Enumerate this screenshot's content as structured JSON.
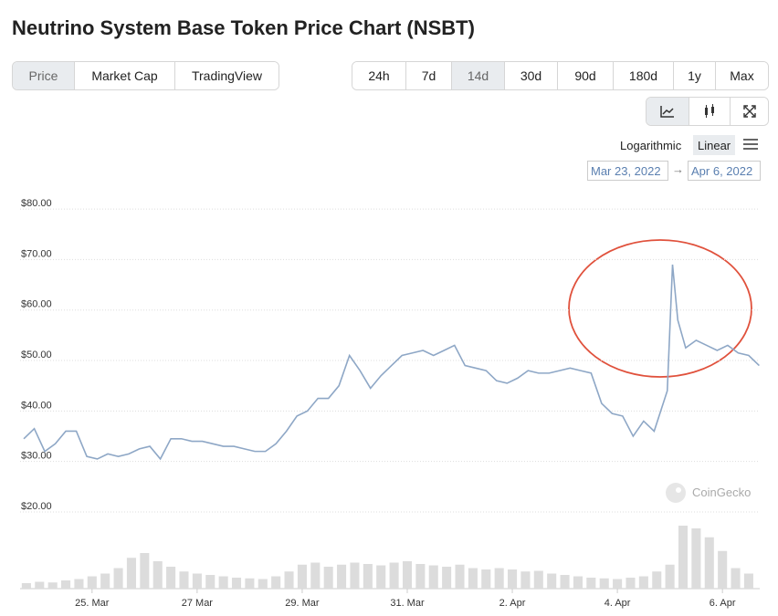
{
  "header": {
    "title": "Neutrino System Base Token Price Chart (NSBT)"
  },
  "tabs": [
    "Price",
    "Market Cap",
    "TradingView"
  ],
  "ranges": [
    "24h",
    "7d",
    "14d",
    "30d",
    "90d",
    "180d",
    "1y",
    "Max"
  ],
  "scales": [
    "Logarithmic",
    "Linear"
  ],
  "date_range": {
    "from": "Mar 23, 2022",
    "to": "Apr 6, 2022"
  },
  "watermark": "CoinGecko",
  "chart_data": {
    "type": "line",
    "color": "#8ea7c6",
    "grid": true,
    "x": [
      0.7,
      0.9,
      1.1,
      1.3,
      1.5,
      1.7,
      1.9,
      2.1,
      2.3,
      2.5,
      2.7,
      2.9,
      3.1,
      3.3,
      3.5,
      3.7,
      3.9,
      4.1,
      4.3,
      4.5,
      4.7,
      4.9,
      5.1,
      5.3,
      5.5,
      5.7,
      5.9,
      6.1,
      6.3,
      6.5,
      6.7,
      6.9,
      7.1,
      7.3,
      7.5,
      7.7,
      7.9,
      8.1,
      8.3,
      8.5,
      8.7,
      8.9,
      9.1,
      9.3,
      9.5,
      9.7,
      9.9,
      10.1,
      10.3,
      10.5,
      10.7,
      10.9,
      11.1,
      11.3,
      11.5,
      11.7,
      11.9,
      12.1,
      12.3,
      12.5,
      12.7,
      12.95,
      13.05,
      13.15,
      13.3,
      13.5,
      13.7,
      13.9,
      14.1,
      14.3,
      14.5,
      14.7
    ],
    "values": [
      34.5,
      36.5,
      32,
      33.5,
      36,
      36,
      31,
      30.5,
      31.5,
      31,
      31.5,
      32.5,
      33,
      30.5,
      34.5,
      34.5,
      34,
      34,
      33.5,
      33,
      33,
      32.5,
      32,
      32,
      33.5,
      36,
      39,
      40,
      42.5,
      42.5,
      45,
      51,
      48,
      44.5,
      47,
      49,
      51,
      51.5,
      52,
      51,
      52,
      53,
      49,
      48.5,
      48,
      46,
      45.5,
      46.5,
      48,
      47.5,
      47.5,
      48,
      48.5,
      48,
      47.5,
      41.5,
      39.5,
      39,
      35,
      38,
      36,
      44,
      69,
      58,
      52.5,
      54,
      53,
      52,
      53,
      51.5,
      51,
      49
    ],
    "xlim": [
      0.63,
      14.71
    ],
    "xticks": [
      {
        "value": 2,
        "label": "25. Mar"
      },
      {
        "value": 4,
        "label": "27 Mar"
      },
      {
        "value": 6,
        "label": "29. Mar"
      },
      {
        "value": 8,
        "label": "31. Mar"
      },
      {
        "value": 10,
        "label": "2. Apr"
      },
      {
        "value": 12,
        "label": "4. Apr"
      },
      {
        "value": 14,
        "label": "6. Apr"
      }
    ],
    "ylim": [
      20,
      82
    ],
    "yticks": [
      {
        "value": 20,
        "label": "$20.00"
      },
      {
        "value": 30,
        "label": "$30.00"
      },
      {
        "value": 40,
        "label": "$40.00"
      },
      {
        "value": 50,
        "label": "$50.00"
      },
      {
        "value": 60,
        "label": "$60.00"
      },
      {
        "value": 70,
        "label": "$70.00"
      },
      {
        "value": 80,
        "label": "$80.00"
      }
    ],
    "volume": {
      "color": "#dcdcdc",
      "x": [
        0.75,
        1.0,
        1.25,
        1.5,
        1.75,
        2.0,
        2.25,
        2.5,
        2.75,
        3.0,
        3.25,
        3.5,
        3.75,
        4.0,
        4.25,
        4.5,
        4.75,
        5.0,
        5.25,
        5.5,
        5.75,
        6.0,
        6.25,
        6.5,
        6.75,
        7.0,
        7.25,
        7.5,
        7.75,
        8.0,
        8.25,
        8.5,
        8.75,
        9.0,
        9.25,
        9.5,
        9.75,
        10.0,
        10.25,
        10.5,
        10.75,
        11.0,
        11.25,
        11.5,
        11.75,
        12.0,
        12.25,
        12.5,
        12.75,
        13.0,
        13.25,
        13.5,
        13.75,
        14.0,
        14.25,
        14.5
      ],
      "values": [
        8,
        10,
        9,
        12,
        14,
        18,
        22,
        30,
        45,
        52,
        40,
        32,
        25,
        22,
        20,
        18,
        16,
        15,
        14,
        18,
        25,
        35,
        38,
        32,
        35,
        38,
        36,
        34,
        38,
        40,
        36,
        34,
        32,
        35,
        30,
        28,
        30,
        28,
        25,
        26,
        22,
        20,
        18,
        16,
        15,
        14,
        16,
        18,
        25,
        35,
        92,
        88,
        75,
        55,
        30,
        22
      ],
      "y2lim": [
        0,
        100
      ]
    }
  }
}
